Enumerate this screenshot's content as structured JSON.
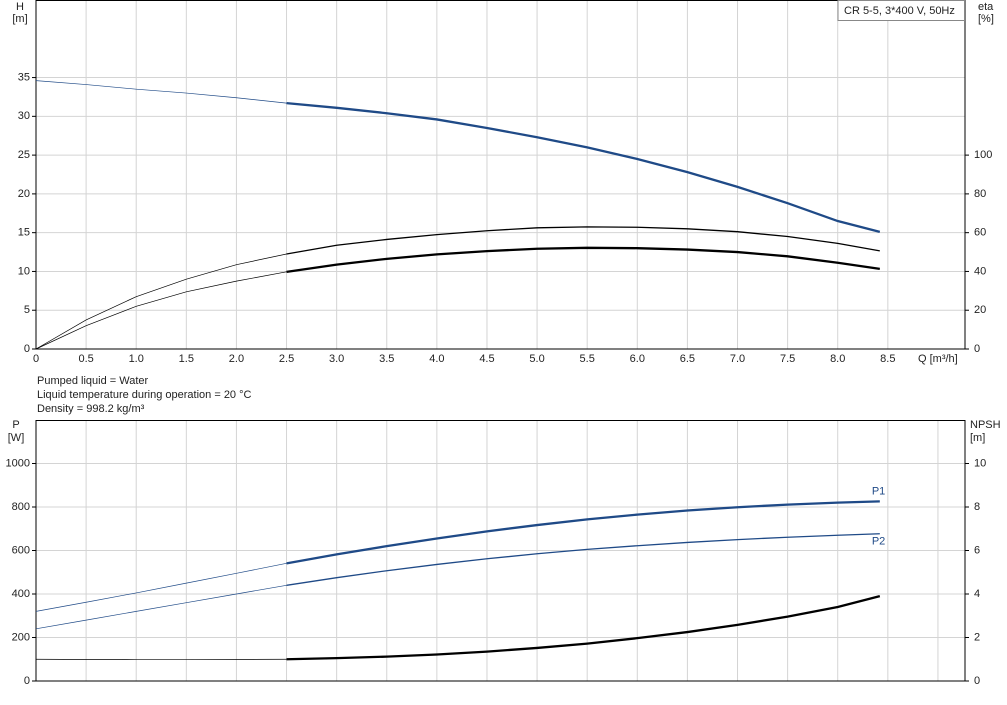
{
  "chart_data": [
    {
      "type": "line",
      "annotation": "CR 5-5, 3*400 V, 50Hz",
      "ylabel": "H",
      "yunit": "[m]",
      "y2label": "eta",
      "y2unit": "[%]",
      "xlabel": "Q [m³/h]",
      "xlim": [
        0,
        9.27
      ],
      "xticks": [
        0,
        0.5,
        {
          "value": 1,
          "label": "1.0"
        },
        1.5,
        {
          "value": 2,
          "label": "2.0"
        },
        2.5,
        {
          "value": 3,
          "label": "3.0"
        },
        3.5,
        {
          "value": 4,
          "label": "4.0"
        },
        4.5,
        {
          "value": 5,
          "label": "5.0"
        },
        5.5,
        {
          "value": 6,
          "label": "6.0"
        },
        6.5,
        {
          "value": 7,
          "label": "7.0"
        },
        7.5,
        {
          "value": 8,
          "label": "8.0"
        },
        8.5
      ],
      "xtick_labels": true,
      "ylim": [
        0,
        45
      ],
      "yticks": [
        0,
        5,
        10,
        15,
        20,
        25,
        30,
        35
      ],
      "y2lim": [
        0,
        180
      ],
      "y2ticks": [
        0,
        20,
        40,
        60,
        80,
        100
      ],
      "grid": true,
      "thick_from_x": 2.5,
      "x": [
        0,
        0.5,
        1,
        1.5,
        2,
        2.5,
        3,
        3.5,
        4,
        4.5,
        5,
        5.5,
        6,
        6.5,
        7,
        7.5,
        8,
        8.42
      ],
      "series": [
        {
          "color": "#1f4a87",
          "bold": true,
          "values": [
            34.6,
            34.1,
            33.5,
            33.0,
            32.4,
            31.7,
            31.1,
            30.4,
            29.6,
            28.5,
            27.3,
            26.0,
            24.5,
            22.8,
            20.9,
            18.8,
            16.5,
            15.1
          ]
        },
        {
          "color": "#000000",
          "bold": false,
          "axis": "y2",
          "values": [
            0,
            15,
            27,
            36,
            43.5,
            49,
            53.5,
            56.5,
            59,
            61,
            62.5,
            63,
            62.8,
            62,
            60.5,
            58,
            54.5,
            50.6
          ]
        },
        {
          "color": "#000000",
          "bold": true,
          "axis": "y2",
          "values": [
            0,
            12,
            22,
            29.5,
            35,
            39.8,
            43.5,
            46.5,
            48.8,
            50.5,
            51.7,
            52.2,
            52,
            51.3,
            50,
            47.8,
            44.5,
            41.3
          ]
        }
      ]
    },
    {
      "type": "line",
      "ylabel": "P",
      "yunit": "[W]",
      "y2label": "NPSH",
      "y2unit": "[m]",
      "xlim": [
        0,
        9.27
      ],
      "xticks": [
        0,
        0.5,
        1,
        1.5,
        2,
        2.5,
        3,
        3.5,
        4,
        4.5,
        5,
        5.5,
        6,
        6.5,
        7,
        7.5,
        8,
        8.5,
        9
      ],
      "xtick_labels": false,
      "ylim": [
        0,
        1200
      ],
      "yticks": [
        0,
        200,
        400,
        600,
        800,
        1000
      ],
      "y2lim": [
        0,
        12
      ],
      "y2ticks": [
        0,
        2,
        4,
        6,
        8,
        10
      ],
      "grid": true,
      "thick_from_x": 2.5,
      "x": [
        0,
        0.5,
        1,
        1.5,
        2,
        2.5,
        3,
        3.5,
        4,
        4.5,
        5,
        5.5,
        6,
        6.5,
        7,
        7.5,
        8,
        8.42
      ],
      "series": [
        {
          "name": "P1",
          "color": "#1f4a87",
          "bold": true,
          "values": [
            320,
            362,
            405,
            450,
            495,
            541,
            582,
            620,
            655,
            688,
            717,
            743,
            765,
            784,
            799,
            811,
            820,
            826
          ]
        },
        {
          "name": "P2",
          "color": "#1f4a87",
          "bold": false,
          "values": [
            240,
            280,
            320,
            360,
            400,
            440,
            475,
            507,
            536,
            562,
            585,
            605,
            622,
            637,
            650,
            661,
            670,
            677
          ]
        },
        {
          "color": "#000000",
          "bold": true,
          "axis": "y2",
          "values": [
            1.0,
            0.99,
            0.98,
            0.98,
            0.99,
            1.0,
            1.05,
            1.12,
            1.22,
            1.35,
            1.52,
            1.72,
            1.97,
            2.25,
            2.58,
            2.96,
            3.4,
            3.9
          ]
        }
      ]
    }
  ],
  "notes": [
    "Pumped liquid = Water",
    "Liquid temperature during operation = 20 °C",
    "Density = 998.2 kg/m³"
  ]
}
